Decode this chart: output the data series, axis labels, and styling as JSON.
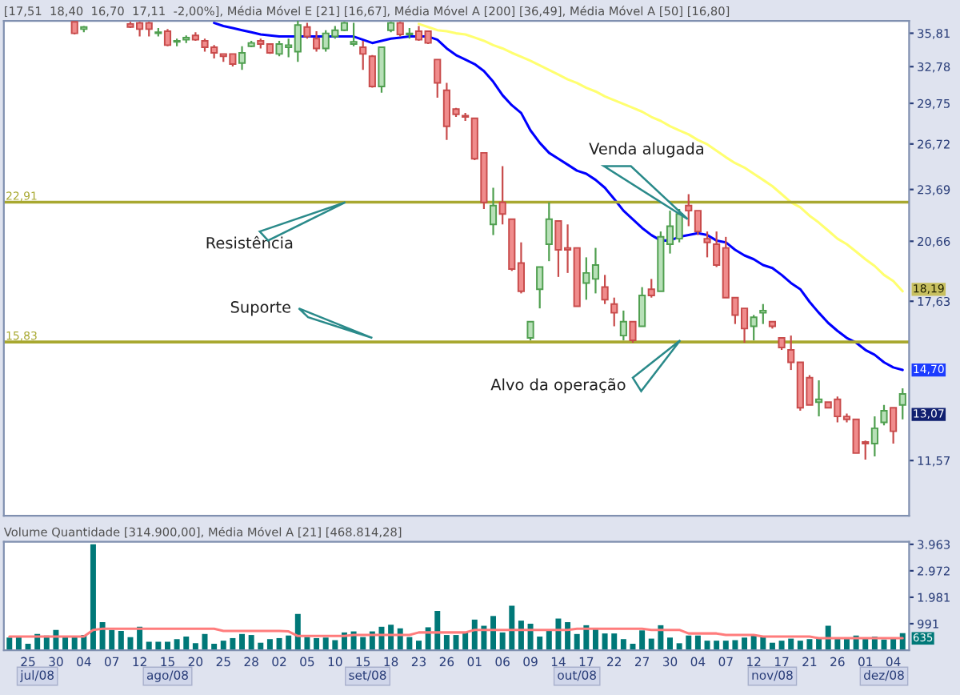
{
  "chart_data": [
    {
      "type": "candlestick",
      "title": "[17,51  18,40  16,70  17,11  -2,00%], Média Móvel E [21] [16,67], Média Móvel A [200] [36,49], Média Móvel A [50] [16,80]",
      "categories": [
        null,
        null,
        "25",
        null,
        null,
        "30",
        null,
        null,
        "04",
        null,
        null,
        "07",
        null,
        null,
        "12",
        null,
        null,
        "15",
        null,
        null,
        "20",
        null,
        null,
        "25",
        null,
        null,
        "28",
        null,
        null,
        "02",
        null,
        null,
        "05",
        null,
        null,
        "10",
        null,
        null,
        "15",
        null,
        null,
        "18",
        null,
        null,
        "23",
        null,
        null,
        "26",
        null,
        null,
        "01",
        null,
        null,
        "06",
        null,
        null,
        "09",
        null,
        null,
        "14",
        null,
        null,
        "17",
        null,
        null,
        "22",
        null,
        null,
        "27",
        null,
        null,
        "30",
        null,
        null,
        "04",
        null,
        null,
        "07",
        null,
        null,
        "12",
        null,
        null,
        "17",
        null,
        null,
        "21",
        null,
        null,
        "26",
        null,
        null,
        "01",
        null,
        null,
        "04",
        null
      ],
      "ohlc": [
        null,
        null,
        null,
        null,
        null,
        null,
        null,
        [
          36.9,
          36.9,
          35.7,
          35.8
        ],
        [
          36.2,
          36.5,
          35.9,
          36.4
        ],
        null,
        null,
        null,
        null,
        [
          36.7,
          36.9,
          36.3,
          36.4
        ],
        [
          36.8,
          36.9,
          35.5,
          36.2
        ],
        [
          36.8,
          36.9,
          35.5,
          36.2
        ],
        [
          35.8,
          36.3,
          35.5,
          35.9
        ],
        [
          36.0,
          36.2,
          34.6,
          34.7
        ],
        [
          35.0,
          35.3,
          34.6,
          35.1
        ],
        [
          35.2,
          35.6,
          34.9,
          35.4
        ],
        [
          35.6,
          35.9,
          35.1,
          35.2
        ],
        [
          35.1,
          35.3,
          34.1,
          34.5
        ],
        [
          34.5,
          34.7,
          33.5,
          34.0
        ],
        [
          33.9,
          33.9,
          33.2,
          33.7
        ],
        [
          33.9,
          33.9,
          32.8,
          33.0
        ],
        [
          33.1,
          34.6,
          32.5,
          34.0
        ],
        [
          34.6,
          35.1,
          34.5,
          34.9
        ],
        [
          35.1,
          35.3,
          34.4,
          34.8
        ],
        [
          34.8,
          34.8,
          33.9,
          34.0
        ],
        [
          33.9,
          35.1,
          33.7,
          34.8
        ],
        [
          34.5,
          35.3,
          33.6,
          34.7
        ],
        [
          34.1,
          37.0,
          33.2,
          36.6
        ],
        [
          36.4,
          36.8,
          35.3,
          35.5
        ],
        [
          35.3,
          36.0,
          34.1,
          34.4
        ],
        [
          34.4,
          36.1,
          34.1,
          35.8
        ],
        [
          35.5,
          36.5,
          35.3,
          36.1
        ],
        [
          36.1,
          36.9,
          36.0,
          36.8
        ],
        [
          34.8,
          36.8,
          34.6,
          35.0
        ],
        [
          34.5,
          35.1,
          32.5,
          33.9
        ],
        [
          33.7,
          33.8,
          31.0,
          31.1
        ],
        [
          31.1,
          34.5,
          30.6,
          34.5
        ],
        [
          36.1,
          36.9,
          35.9,
          36.8
        ],
        [
          36.8,
          36.9,
          35.5,
          35.7
        ],
        [
          35.7,
          36.3,
          35.3,
          35.8
        ],
        [
          36.0,
          36.5,
          35.1,
          35.2
        ],
        [
          36.0,
          36.0,
          34.8,
          34.9
        ],
        [
          33.4,
          33.4,
          30.2,
          31.4
        ],
        [
          30.8,
          31.4,
          27.0,
          28.0
        ],
        [
          29.3,
          29.4,
          28.7,
          28.9
        ],
        [
          28.8,
          29.0,
          28.4,
          28.7
        ],
        [
          28.6,
          28.6,
          25.6,
          25.7
        ],
        [
          26.1,
          26.1,
          22.5,
          22.9
        ],
        [
          21.6,
          23.8,
          21.0,
          22.7
        ],
        [
          22.9,
          25.2,
          21.6,
          22.2
        ],
        [
          21.9,
          21.9,
          19.1,
          19.2
        ],
        [
          19.5,
          20.6,
          18.0,
          18.1
        ],
        [
          16.0,
          16.7,
          15.9,
          16.7
        ],
        [
          18.2,
          19.3,
          17.3,
          19.3
        ],
        [
          20.5,
          22.9,
          19.6,
          21.9
        ],
        [
          21.8,
          21.8,
          18.8,
          20.2
        ],
        [
          20.3,
          21.6,
          19.0,
          20.2
        ],
        [
          20.3,
          20.3,
          17.4,
          17.4
        ],
        [
          18.5,
          19.8,
          17.7,
          19.0
        ],
        [
          18.7,
          20.3,
          18.0,
          19.4
        ],
        [
          18.3,
          18.9,
          17.5,
          17.7
        ],
        [
          17.5,
          17.8,
          16.5,
          17.1
        ],
        [
          16.1,
          17.2,
          15.9,
          16.7
        ],
        [
          16.7,
          16.7,
          15.8,
          15.9
        ],
        [
          16.5,
          18.3,
          16.5,
          17.9
        ],
        [
          18.2,
          18.7,
          17.8,
          17.9
        ],
        [
          18.1,
          21.2,
          18.1,
          20.9
        ],
        [
          20.5,
          22.4,
          20.0,
          21.5
        ],
        [
          20.8,
          22.5,
          20.6,
          22.2
        ],
        [
          22.7,
          23.4,
          21.5,
          22.4
        ],
        [
          22.4,
          22.4,
          21.0,
          21.2
        ],
        [
          20.8,
          21.2,
          19.8,
          20.6
        ],
        [
          20.5,
          21.2,
          19.3,
          19.4
        ],
        [
          20.3,
          20.9,
          17.8,
          17.8
        ],
        [
          17.8,
          17.8,
          16.6,
          17.0
        ],
        [
          17.3,
          17.3,
          15.8,
          16.4
        ],
        [
          16.5,
          17.0,
          15.9,
          16.9
        ],
        [
          17.1,
          17.5,
          16.6,
          17.2
        ],
        [
          16.7,
          16.7,
          16.4,
          16.5
        ],
        [
          16.0,
          16.0,
          15.5,
          15.6
        ],
        [
          15.5,
          16.1,
          14.7,
          15.0
        ],
        [
          15.0,
          15.0,
          13.2,
          13.3
        ],
        [
          14.4,
          14.5,
          13.4,
          13.4
        ],
        [
          13.5,
          14.3,
          13.0,
          13.6
        ],
        [
          13.5,
          13.5,
          13.3,
          13.3
        ],
        [
          13.6,
          13.7,
          12.8,
          13.0
        ],
        [
          13.0,
          13.1,
          12.8,
          12.9
        ],
        [
          12.9,
          12.9,
          11.8,
          11.8
        ],
        [
          12.15,
          12.2,
          11.6,
          12.1
        ],
        [
          12.1,
          13.0,
          11.7,
          12.6
        ],
        [
          12.8,
          13.4,
          12.7,
          13.2
        ],
        [
          13.3,
          13.3,
          12.1,
          12.5
        ],
        [
          13.4,
          14.0,
          12.9,
          13.8
        ]
      ],
      "series": [
        {
          "type": "line",
          "color": "#0000ff",
          "values": [
            null,
            null,
            null,
            null,
            null,
            null,
            null,
            null,
            null,
            null,
            null,
            null,
            null,
            null,
            null,
            null,
            null,
            null,
            null,
            null,
            null,
            null,
            36.8,
            36.5,
            36.3,
            36.1,
            35.9,
            35.7,
            35.6,
            35.5,
            35.5,
            35.5,
            35.5,
            35.5,
            35.5,
            35.5,
            35.5,
            35.5,
            35.2,
            34.9,
            35.1,
            35.3,
            35.4,
            35.5,
            35.5,
            35.5,
            35.2,
            34.4,
            33.8,
            33.4,
            33.0,
            32.4,
            31.5,
            30.4,
            29.6,
            29.0,
            27.7,
            26.8,
            26.1,
            25.7,
            25.3,
            24.9,
            24.7,
            24.3,
            23.8,
            23.1,
            22.4,
            21.9,
            21.4,
            21.0,
            20.7,
            20.7,
            20.9,
            21.0,
            21.1,
            21.0,
            20.7,
            20.6,
            20.2,
            19.9,
            19.7,
            19.4,
            19.25,
            18.9,
            18.5,
            18.2,
            17.6,
            17.1,
            16.65,
            16.3,
            16.0,
            15.8,
            15.5,
            15.3,
            15.0,
            14.8,
            14.7
          ]
        },
        {
          "type": "line",
          "color": "#ffff70",
          "values": [
            null,
            null,
            null,
            null,
            null,
            null,
            null,
            null,
            null,
            null,
            null,
            null,
            null,
            null,
            null,
            null,
            null,
            null,
            null,
            null,
            null,
            null,
            null,
            null,
            null,
            null,
            null,
            null,
            null,
            null,
            null,
            null,
            null,
            null,
            null,
            null,
            null,
            null,
            null,
            null,
            null,
            null,
            null,
            null,
            36.7,
            36.4,
            36.1,
            36.0,
            35.8,
            35.7,
            35.4,
            35.1,
            34.7,
            34.4,
            34.0,
            33.65,
            33.3,
            32.9,
            32.5,
            32.1,
            31.7,
            31.4,
            31.0,
            30.7,
            30.3,
            30.0,
            29.7,
            29.4,
            29.1,
            28.7,
            28.4,
            28.0,
            27.7,
            27.4,
            27.0,
            26.7,
            26.25,
            25.8,
            25.4,
            25.1,
            24.7,
            24.3,
            23.9,
            23.4,
            22.9,
            22.6,
            22.1,
            21.7,
            21.25,
            20.8,
            20.5,
            20.1,
            19.7,
            19.35,
            18.9,
            18.6,
            18.1
          ]
        }
      ],
      "log": true,
      "ylim": [
        10.0,
        37.0
      ],
      "yticks": [
        {
          "value": 11.57,
          "label": "11,57"
        },
        {
          "value": 17.63,
          "label": "17,63"
        },
        {
          "value": 20.66,
          "label": "20,66"
        },
        {
          "value": 23.69,
          "label": "23,69"
        },
        {
          "value": 26.72,
          "label": "26,72"
        },
        {
          "value": 29.75,
          "label": "29,75"
        },
        {
          "value": 32.78,
          "label": "32,78"
        },
        {
          "value": 35.81,
          "label": "35,81"
        }
      ],
      "ref_lines": [
        {
          "axis": "y",
          "value": 22.91,
          "label": "22,91",
          "color": "#a8a830"
        },
        {
          "axis": "y",
          "value": 15.83,
          "label": "15,83",
          "color": "#a8a830"
        }
      ],
      "annotations": [
        "Venda alugada",
        "Resistência",
        "Suporte",
        "Alvo da operação",
        {
          "text": "18,19",
          "y": 18.19
        },
        {
          "text": "14,70",
          "y": 14.7
        },
        {
          "text": "13,07",
          "y": 13.07
        }
      ],
      "tick_labels": "y"
    },
    {
      "type": "bar",
      "title": "Volume Quantidade [314.900,00], Média Móvel A [21] [468.814,28]",
      "categories": [
        null,
        null,
        "25",
        null,
        null,
        "30",
        null,
        null,
        "04",
        null,
        null,
        "07",
        null,
        null,
        "12",
        null,
        null,
        "15",
        null,
        null,
        "20",
        null,
        null,
        "25",
        null,
        null,
        "28",
        null,
        null,
        "02",
        null,
        null,
        "05",
        null,
        null,
        "10",
        null,
        null,
        "15",
        null,
        null,
        "18",
        null,
        null,
        "23",
        null,
        null,
        "26",
        null,
        null,
        "01",
        null,
        null,
        "06",
        null,
        null,
        "09",
        null,
        null,
        "14",
        null,
        null,
        "17",
        null,
        null,
        "22",
        null,
        null,
        "27",
        null,
        null,
        "30",
        null,
        null,
        "04",
        null,
        null,
        "07",
        null,
        null,
        "12",
        null,
        null,
        "17",
        null,
        null,
        "21",
        null,
        null,
        "26",
        null,
        null,
        "01",
        null,
        null,
        "04",
        null
      ],
      "series": [
        {
          "type": "bar",
          "color": "#007878",
          "values": [
            472,
            510,
            241,
            606,
            549,
            760,
            491,
            491,
            568,
            3963,
            1049,
            760,
            722,
            491,
            876,
            318,
            318,
            318,
            414,
            510,
            260,
            606,
            241,
            356,
            452,
            606,
            568,
            279,
            414,
            452,
            549,
            1357,
            491,
            452,
            472,
            375,
            664,
            703,
            491,
            703,
            876,
            953,
            818,
            491,
            356,
            857,
            1473,
            568,
            568,
            664,
            1145,
            914,
            1280,
            664,
            1665,
            1107,
            991,
            510,
            741,
            1184,
            1049,
            606,
            934,
            780,
            626,
            626,
            414,
            241,
            741,
            433,
            934,
            472,
            260,
            549,
            549,
            356,
            356,
            356,
            375,
            472,
            568,
            510,
            279,
            356,
            433,
            356,
            414,
            433,
            914,
            472,
            472,
            549,
            472,
            510,
            395,
            433,
            635
          ]
        },
        {
          "type": "line",
          "color": "#ff7c7c",
          "values": [
            510,
            510,
            510,
            510,
            510,
            510,
            510,
            510,
            510,
            760,
            800,
            800,
            800,
            800,
            800,
            800,
            800,
            800,
            800,
            800,
            800,
            800,
            800,
            722,
            722,
            722,
            722,
            722,
            722,
            722,
            703,
            530,
            530,
            530,
            530,
            530,
            530,
            568,
            568,
            568,
            568,
            568,
            568,
            568,
            664,
            664,
            664,
            664,
            664,
            664,
            760,
            760,
            760,
            760,
            760,
            760,
            760,
            760,
            760,
            760,
            760,
            800,
            800,
            800,
            800,
            800,
            800,
            800,
            800,
            760,
            760,
            760,
            760,
            626,
            626,
            626,
            626,
            568,
            568,
            568,
            568,
            510,
            510,
            510,
            510,
            510,
            510,
            452,
            452,
            452,
            452,
            452,
            452,
            452,
            452,
            452,
            452
          ]
        }
      ],
      "ylim": [
        0,
        4060
      ],
      "yticks": [
        991,
        {
          "value": 1981,
          "label": "1.981"
        },
        {
          "value": 2972,
          "label": "2.972"
        },
        {
          "value": 3963,
          "label": "3.963"
        }
      ],
      "annotations": [
        "jul/08",
        "ago/08",
        "set/08",
        "out/08",
        "nov/08",
        "dez/08",
        "635"
      ]
    }
  ]
}
